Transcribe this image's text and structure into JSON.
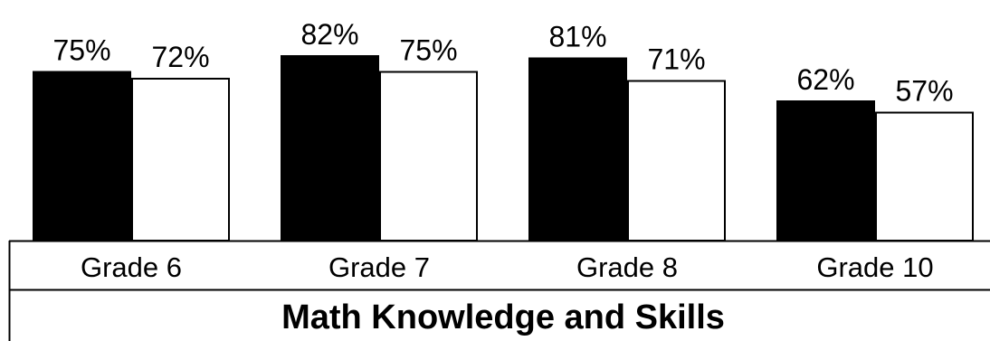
{
  "chart_data": {
    "type": "bar",
    "title": "Math Knowledge and Skills",
    "categories": [
      "Grade 6",
      "Grade 7",
      "Grade 8",
      "Grade 10"
    ],
    "series": [
      {
        "values": [
          75,
          82,
          81,
          62
        ],
        "labels": [
          "75%",
          "82%",
          "81%",
          "62%"
        ],
        "color": "#000000"
      },
      {
        "values": [
          72,
          75,
          71,
          57
        ],
        "labels": [
          "72%",
          "75%",
          "71%",
          "57%"
        ],
        "color": "#ffffff"
      }
    ],
    "ylim": [
      0,
      100
    ],
    "grid": false,
    "legend": "none"
  }
}
